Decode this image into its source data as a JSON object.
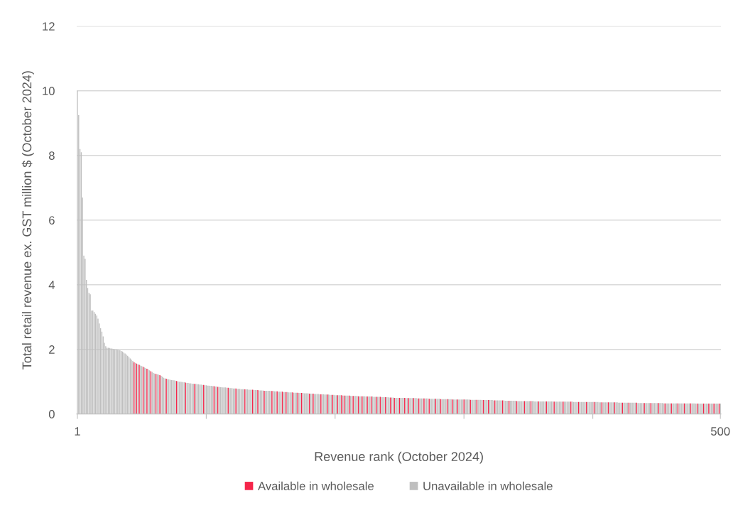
{
  "chart_data": {
    "type": "bar",
    "xlabel": "Revenue rank (October 2024)",
    "ylabel": "Total retail revenue ex. GST million $ (October 2024)",
    "xlim": [
      0.5,
      500.5
    ],
    "xticks": [
      1,
      {
        "value": 101,
        "label": null
      },
      {
        "value": 201,
        "label": null
      },
      {
        "value": 301,
        "label": null
      },
      {
        "value": 401,
        "label": null
      },
      500
    ],
    "ylim": [
      0,
      12
    ],
    "yticks": [
      0,
      2,
      4,
      6,
      8,
      10,
      12
    ],
    "grid": "y",
    "legend": "bottom",
    "series": [
      {
        "name": "Available in wholesale",
        "color": "#f5254a",
        "x": [
          45,
          47,
          49,
          52,
          55,
          58,
          62,
          65,
          70,
          78,
          85,
          92,
          99,
          107,
          110,
          118,
          124,
          131,
          137,
          141,
          146,
          152,
          156,
          160,
          163,
          168,
          172,
          175,
          181,
          184,
          190,
          195,
          199,
          203,
          206,
          208,
          212,
          215,
          219,
          222,
          226,
          229,
          233,
          236,
          240,
          244,
          247,
          251,
          255,
          258,
          262,
          266,
          270,
          274,
          279,
          283,
          288,
          292,
          296,
          301,
          306,
          311,
          316,
          320,
          325,
          331,
          336,
          342,
          348,
          353,
          359,
          365,
          371,
          378,
          384,
          390,
          396,
          402,
          408,
          413,
          418,
          424,
          429,
          435,
          441,
          446,
          452,
          457,
          462,
          467,
          472,
          477,
          482,
          487,
          491,
          495,
          499
        ],
        "values": [
          1.6,
          1.56,
          1.52,
          1.46,
          1.4,
          1.32,
          1.24,
          1.2,
          1.09,
          1.02,
          0.97,
          0.93,
          0.9,
          0.86,
          0.84,
          0.81,
          0.79,
          0.76,
          0.75,
          0.74,
          0.72,
          0.71,
          0.7,
          0.69,
          0.68,
          0.67,
          0.66,
          0.65,
          0.63,
          0.63,
          0.61,
          0.6,
          0.59,
          0.58,
          0.58,
          0.57,
          0.57,
          0.56,
          0.55,
          0.55,
          0.54,
          0.54,
          0.53,
          0.53,
          0.52,
          0.51,
          0.5,
          0.5,
          0.5,
          0.49,
          0.49,
          0.48,
          0.48,
          0.47,
          0.47,
          0.46,
          0.46,
          0.45,
          0.45,
          0.45,
          0.44,
          0.44,
          0.43,
          0.43,
          0.42,
          0.42,
          0.41,
          0.4,
          0.4,
          0.4,
          0.39,
          0.39,
          0.38,
          0.38,
          0.38,
          0.37,
          0.37,
          0.37,
          0.36,
          0.36,
          0.36,
          0.35,
          0.35,
          0.35,
          0.34,
          0.34,
          0.34,
          0.33,
          0.33,
          0.33,
          0.33,
          0.33,
          0.32,
          0.32,
          0.32,
          0.32,
          0.32
        ]
      },
      {
        "name": "Unavailable in wholesale",
        "color": "#bfbfbf",
        "x": [
          1,
          2,
          3,
          4,
          5,
          6,
          7,
          8,
          9,
          10,
          11,
          12,
          13,
          14,
          15,
          16,
          17,
          18,
          19,
          20,
          21,
          22,
          23,
          24,
          25,
          26,
          27,
          28,
          29,
          30,
          31,
          32,
          33,
          34,
          35,
          36,
          37,
          38,
          39,
          40,
          41,
          42,
          43,
          44,
          46,
          48,
          50,
          51,
          53,
          54,
          56,
          57,
          59,
          60,
          61,
          63,
          64,
          66,
          67,
          68,
          69,
          71,
          72,
          73,
          74,
          75,
          76,
          77,
          79,
          80,
          81,
          82,
          83,
          84,
          86,
          87,
          88,
          89,
          90,
          91,
          93,
          94,
          95,
          96,
          97,
          98,
          100,
          101,
          102,
          103,
          104,
          105,
          106,
          108,
          109,
          111,
          112,
          113,
          114,
          115,
          116,
          117,
          119,
          120,
          121,
          122,
          123,
          125,
          126,
          127,
          128,
          129,
          130,
          132,
          133,
          134,
          135,
          136,
          138,
          139,
          140,
          142,
          143,
          144,
          145,
          147,
          148,
          149,
          150,
          151,
          153,
          154,
          155,
          157,
          158,
          159,
          161,
          162,
          164,
          165,
          166,
          167,
          169,
          170,
          171,
          173,
          174,
          176,
          177,
          178,
          179,
          180,
          182,
          183,
          185,
          186,
          187,
          188,
          189,
          191,
          192,
          193,
          194,
          196,
          197,
          198,
          200,
          201,
          202,
          204,
          205,
          207,
          209,
          210,
          211,
          213,
          214,
          216,
          217,
          218,
          220,
          221,
          223,
          224,
          225,
          227,
          228,
          230,
          231,
          232,
          234,
          235,
          237,
          238,
          239,
          241,
          242,
          243,
          245,
          246,
          248,
          249,
          250,
          252,
          253,
          254,
          256,
          257,
          259,
          260,
          261,
          263,
          264,
          265,
          267,
          268,
          269,
          271,
          272,
          273,
          275,
          276,
          277,
          278,
          280,
          281,
          282,
          284,
          285,
          286,
          287,
          289,
          290,
          291,
          293,
          294,
          295,
          297,
          298,
          299,
          300,
          302,
          303,
          304,
          305,
          307,
          308,
          309,
          310,
          312,
          313,
          314,
          315,
          317,
          318,
          319,
          321,
          322,
          323,
          324,
          326,
          327,
          328,
          329,
          330,
          332,
          333,
          334,
          335,
          337,
          338,
          339,
          340,
          341,
          343,
          344,
          345,
          346,
          347,
          349,
          350,
          351,
          352,
          354,
          355,
          356,
          357,
          358,
          360,
          361,
          362,
          363,
          364,
          366,
          367,
          368,
          369,
          370,
          372,
          373,
          374,
          375,
          376,
          377,
          379,
          380,
          381,
          382,
          383,
          385,
          386,
          387,
          388,
          389,
          391,
          392,
          393,
          394,
          395,
          397,
          398,
          399,
          400,
          401,
          403,
          404,
          405,
          406,
          407,
          409,
          410,
          411,
          412,
          414,
          415,
          416,
          417,
          419,
          420,
          421,
          422,
          423,
          425,
          426,
          427,
          428,
          430,
          431,
          432,
          433,
          434,
          436,
          437,
          438,
          439,
          440,
          442,
          443,
          444,
          445,
          447,
          448,
          449,
          450,
          451,
          453,
          454,
          455,
          456,
          458,
          459,
          460,
          461,
          463,
          464,
          465,
          466,
          468,
          469,
          470,
          471,
          473,
          474,
          475,
          476,
          478,
          479,
          480,
          481,
          483,
          484,
          485,
          486,
          488,
          489,
          490,
          492,
          493,
          494,
          496,
          497,
          498,
          500
        ],
        "values": [
          10.0,
          9.25,
          8.2,
          8.1,
          6.7,
          4.9,
          4.8,
          4.15,
          3.9,
          3.75,
          3.7,
          3.2,
          3.2,
          3.15,
          3.1,
          3.05,
          2.95,
          2.8,
          2.65,
          2.55,
          2.4,
          2.2,
          2.1,
          2.05,
          2.05,
          2.04,
          2.03,
          2.02,
          2.01,
          2.0,
          2.0,
          1.99,
          1.98,
          1.97,
          1.95,
          1.93,
          1.9,
          1.87,
          1.84,
          1.8,
          1.76,
          1.72,
          1.68,
          1.64,
          1.58,
          1.54,
          1.5,
          1.48,
          1.44,
          1.42,
          1.38,
          1.35,
          1.3,
          1.27,
          1.25,
          1.23,
          1.22,
          1.18,
          1.15,
          1.12,
          1.1,
          1.08,
          1.07,
          1.06,
          1.05,
          1.05,
          1.04,
          1.03,
          1.01,
          1.0,
          1.0,
          0.99,
          0.98,
          0.98,
          0.96,
          0.96,
          0.95,
          0.95,
          0.94,
          0.94,
          0.93,
          0.92,
          0.92,
          0.91,
          0.91,
          0.9,
          0.89,
          0.89,
          0.88,
          0.88,
          0.87,
          0.87,
          0.86,
          0.85,
          0.85,
          0.84,
          0.83,
          0.83,
          0.82,
          0.82,
          0.82,
          0.81,
          0.8,
          0.8,
          0.8,
          0.79,
          0.79,
          0.78,
          0.78,
          0.78,
          0.77,
          0.77,
          0.77,
          0.76,
          0.76,
          0.75,
          0.75,
          0.75,
          0.74,
          0.74,
          0.74,
          0.73,
          0.73,
          0.73,
          0.73,
          0.72,
          0.72,
          0.72,
          0.72,
          0.71,
          0.71,
          0.7,
          0.7,
          0.69,
          0.69,
          0.69,
          0.68,
          0.68,
          0.68,
          0.67,
          0.67,
          0.67,
          0.66,
          0.66,
          0.66,
          0.65,
          0.65,
          0.65,
          0.64,
          0.64,
          0.64,
          0.64,
          0.63,
          0.63,
          0.62,
          0.62,
          0.62,
          0.62,
          0.61,
          0.61,
          0.61,
          0.6,
          0.6,
          0.6,
          0.59,
          0.59,
          0.59,
          0.58,
          0.58,
          0.58,
          0.58,
          0.57,
          0.57,
          0.57,
          0.57,
          0.56,
          0.56,
          0.56,
          0.56,
          0.56,
          0.55,
          0.55,
          0.55,
          0.55,
          0.54,
          0.54,
          0.54,
          0.54,
          0.53,
          0.53,
          0.53,
          0.53,
          0.52,
          0.52,
          0.52,
          0.52,
          0.52,
          0.51,
          0.51,
          0.51,
          0.5,
          0.5,
          0.5,
          0.5,
          0.5,
          0.5,
          0.49,
          0.49,
          0.49,
          0.49,
          0.49,
          0.49,
          0.49,
          0.48,
          0.48,
          0.48,
          0.48,
          0.48,
          0.48,
          0.48,
          0.47,
          0.47,
          0.47,
          0.47,
          0.47,
          0.47,
          0.47,
          0.46,
          0.46,
          0.46,
          0.46,
          0.46,
          0.46,
          0.46,
          0.45,
          0.45,
          0.45,
          0.45,
          0.45,
          0.45,
          0.45,
          0.45,
          0.45,
          0.45,
          0.45,
          0.44,
          0.44,
          0.44,
          0.44,
          0.44,
          0.44,
          0.44,
          0.43,
          0.43,
          0.43,
          0.43,
          0.43,
          0.43,
          0.43,
          0.42,
          0.42,
          0.42,
          0.42,
          0.42,
          0.42,
          0.42,
          0.41,
          0.41,
          0.41,
          0.41,
          0.41,
          0.41,
          0.41,
          0.41,
          0.4,
          0.4,
          0.4,
          0.4,
          0.4,
          0.4,
          0.4,
          0.4,
          0.4,
          0.4,
          0.4,
          0.39,
          0.39,
          0.39,
          0.39,
          0.39,
          0.39,
          0.39,
          0.39,
          0.39,
          0.39,
          0.39,
          0.39,
          0.39,
          0.38,
          0.38,
          0.38,
          0.38,
          0.38,
          0.38,
          0.38,
          0.38,
          0.38,
          0.38,
          0.38,
          0.38,
          0.37,
          0.37,
          0.37,
          0.37,
          0.37,
          0.37,
          0.37,
          0.37,
          0.37,
          0.37,
          0.37,
          0.37,
          0.37,
          0.37,
          0.37,
          0.37,
          0.37,
          0.36,
          0.36,
          0.36,
          0.36,
          0.36,
          0.36,
          0.36,
          0.36,
          0.36,
          0.36,
          0.36,
          0.36,
          0.35,
          0.35,
          0.35,
          0.35,
          0.35,
          0.35,
          0.35,
          0.35,
          0.35,
          0.35,
          0.35,
          0.35,
          0.34,
          0.34,
          0.34,
          0.34,
          0.34,
          0.34,
          0.34,
          0.34,
          0.34,
          0.34,
          0.34,
          0.34,
          0.34,
          0.34,
          0.34,
          0.34,
          0.34,
          0.33,
          0.33,
          0.33,
          0.33,
          0.33,
          0.33,
          0.33,
          0.33,
          0.33,
          0.33,
          0.33,
          0.33,
          0.33,
          0.33,
          0.33,
          0.33,
          0.33,
          0.33,
          0.33,
          0.33,
          0.32,
          0.32,
          0.32,
          0.32,
          0.32,
          0.32,
          0.32,
          0.32,
          0.32,
          0.32,
          0.32,
          0.32,
          0.32,
          0.32,
          0.32
        ]
      }
    ]
  }
}
